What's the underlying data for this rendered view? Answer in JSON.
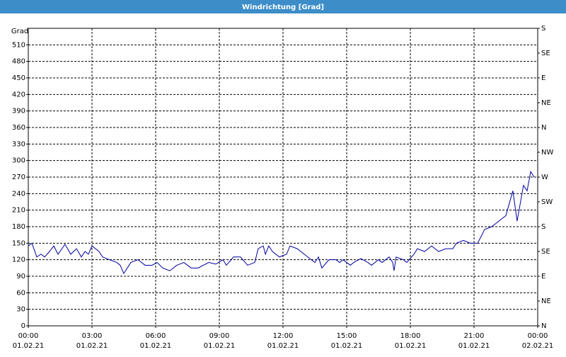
{
  "chart_data": {
    "type": "line",
    "title": "Windrichtung [Grad]",
    "y_label": "Grad",
    "x": [
      0,
      0.17,
      0.4,
      0.6,
      0.77,
      1.0,
      1.2,
      1.4,
      1.73,
      2.0,
      2.27,
      2.5,
      2.67,
      2.83,
      3.0,
      3.33,
      3.5,
      3.83,
      4.17,
      4.33,
      4.5,
      4.83,
      5.17,
      5.5,
      5.83,
      6.07,
      6.33,
      6.67,
      7.0,
      7.33,
      7.67,
      8.0,
      8.5,
      8.83,
      9.17,
      9.33,
      9.67,
      10.0,
      10.33,
      10.67,
      10.83,
      11.07,
      11.17,
      11.33,
      11.5,
      11.83,
      12.17,
      12.33,
      12.67,
      13.0,
      13.33,
      13.5,
      13.67,
      13.83,
      14.17,
      14.5,
      14.67,
      14.83,
      15.17,
      15.33,
      15.67,
      16.0,
      16.17,
      16.5,
      16.67,
      17.0,
      17.17,
      17.23,
      17.33,
      17.67,
      17.83,
      18.17,
      18.33,
      18.67,
      19.0,
      19.33,
      19.67,
      20.0,
      20.17,
      20.5,
      20.83,
      21.17,
      21.5,
      21.83,
      22.0,
      22.33,
      22.5,
      22.83,
      23.03,
      23.33,
      23.5,
      23.67,
      23.83
    ],
    "series": [
      {
        "name": "Windrichtung",
        "color": "#0000a0",
        "values": [
          145,
          150,
          125,
          130,
          125,
          135,
          145,
          130,
          148,
          130,
          140,
          125,
          135,
          130,
          145,
          135,
          125,
          120,
          115,
          110,
          95,
          115,
          120,
          110,
          110,
          115,
          105,
          100,
          110,
          115,
          105,
          105,
          115,
          112,
          120,
          110,
          125,
          125,
          110,
          115,
          140,
          145,
          130,
          145,
          135,
          125,
          130,
          145,
          140,
          130,
          120,
          115,
          125,
          105,
          120,
          120,
          115,
          120,
          110,
          115,
          122,
          115,
          110,
          120,
          115,
          125,
          115,
          100,
          125,
          120,
          115,
          130,
          140,
          135,
          145,
          135,
          140,
          140,
          150,
          155,
          150,
          150,
          175,
          180,
          185,
          195,
          200,
          245,
          190,
          255,
          245,
          280,
          270
        ]
      }
    ],
    "xlim": [
      0,
      24
    ],
    "xticks": [
      {
        "value": 0,
        "label": "00:00 01.02.21"
      },
      {
        "value": 3,
        "label": "03:00 01.02.21"
      },
      {
        "value": 6,
        "label": "06:00 01.02.21"
      },
      {
        "value": 9,
        "label": "09:00 01.02.21"
      },
      {
        "value": 12,
        "label": "12:00 01.02.21"
      },
      {
        "value": 15,
        "label": "15:00 01.02.21"
      },
      {
        "value": 18,
        "label": "18:00 01.02.21"
      },
      {
        "value": 21,
        "label": "21:00 01.02.21"
      },
      {
        "value": 24,
        "label": "00:00 02.02.21"
      }
    ],
    "ylim": [
      0,
      540
    ],
    "yticks": [
      0,
      30,
      60,
      90,
      120,
      150,
      180,
      210,
      240,
      270,
      300,
      330,
      360,
      390,
      420,
      450,
      480,
      510
    ],
    "y2lim": [
      0,
      540
    ],
    "y2ticks": [
      {
        "value": 0,
        "label": "N"
      },
      {
        "value": 45,
        "label": "NE"
      },
      {
        "value": 90,
        "label": "E"
      },
      {
        "value": 135,
        "label": "SE"
      },
      {
        "value": 180,
        "label": "S"
      },
      {
        "value": 225,
        "label": "SW"
      },
      {
        "value": 270,
        "label": "W"
      },
      {
        "value": 315,
        "label": "NW"
      },
      {
        "value": 360,
        "label": "N"
      },
      {
        "value": 405,
        "label": "NE"
      },
      {
        "value": 450,
        "label": "E"
      },
      {
        "value": 495,
        "label": "SE"
      },
      {
        "value": 540,
        "label": "S"
      }
    ],
    "grid": true
  }
}
